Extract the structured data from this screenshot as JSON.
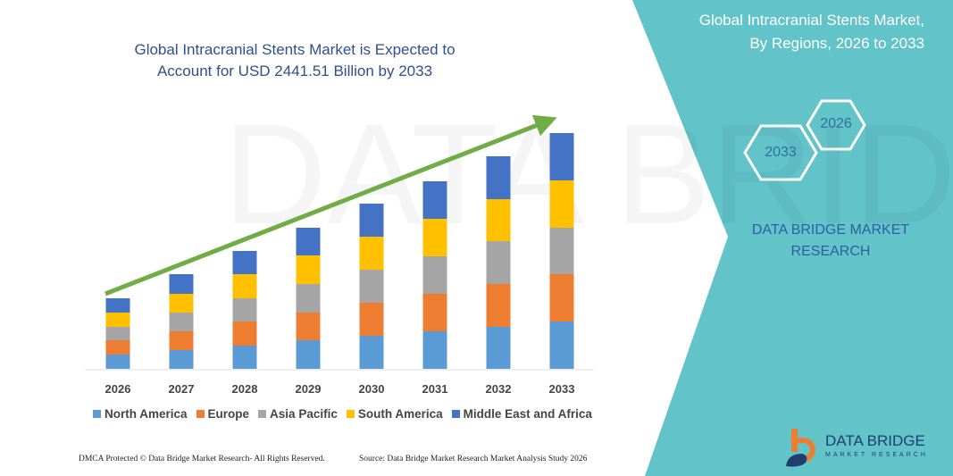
{
  "title": "Global Intracranial Stents Market is Expected to Account for USD 2441.51 Billion by 2033",
  "side_panel": {
    "title_line1": "Global Intracranial Stents Market,",
    "title_line2": "By Regions, 2026 to 2033",
    "hex_start": "2026",
    "hex_end": "2033",
    "brand_line1": "DATA BRIDGE MARKET",
    "brand_line2": "RESEARCH",
    "color": "#62c3c9"
  },
  "footer": {
    "copyright": "DMCA Protected © Data Bridge Market Research- All Rights Reserved.",
    "source": "Source: Data Bridge Market Research  Market Analysis Study 2026"
  },
  "logo": {
    "name": "DATA BRIDGE",
    "sub": "MARKET RESEARCH"
  },
  "chart_data": {
    "type": "bar",
    "stacked": true,
    "categories": [
      "2026",
      "2027",
      "2028",
      "2029",
      "2030",
      "2031",
      "2032",
      "2033"
    ],
    "series": [
      {
        "name": "North America",
        "color": "#5b9bd5",
        "values": [
          16,
          21,
          26,
          32,
          37,
          42,
          47,
          53
        ]
      },
      {
        "name": "Europe",
        "color": "#ed7d31",
        "values": [
          16,
          21,
          27,
          31,
          37,
          42,
          48,
          53
        ]
      },
      {
        "name": "Asia Pacific",
        "color": "#a5a5a5",
        "values": [
          15,
          21,
          26,
          32,
          37,
          42,
          48,
          52
        ]
      },
      {
        "name": "South America",
        "color": "#ffc000",
        "values": [
          16,
          21,
          27,
          32,
          37,
          42,
          47,
          53
        ]
      },
      {
        "name": "Middle East and Africa",
        "color": "#4472c4",
        "values": [
          16,
          22,
          26,
          31,
          37,
          42,
          48,
          53
        ]
      }
    ],
    "legend_position": "bottom",
    "grid": false,
    "trend_arrow_color": "#70ad47"
  }
}
